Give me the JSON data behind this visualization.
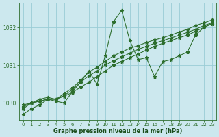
{
  "background_color": "#cce8ee",
  "grid_color": "#99ccd6",
  "line_color": "#2d6e2d",
  "marker_color": "#2d6e2d",
  "xlabel": "Graphe pression niveau de la mer (hPa)",
  "xlabel_color": "#1a4d1a",
  "tick_color": "#2d6e2d",
  "xlim": [
    -0.5,
    23.5
  ],
  "ylim": [
    1029.55,
    1032.65
  ],
  "yticks": [
    1030,
    1031,
    1032
  ],
  "xticks": [
    0,
    1,
    2,
    3,
    4,
    5,
    6,
    7,
    8,
    9,
    10,
    11,
    12,
    13,
    14,
    15,
    16,
    17,
    18,
    19,
    20,
    21,
    22,
    23
  ],
  "series": [
    [
      1029.7,
      1029.85,
      1029.95,
      1030.1,
      1030.05,
      1030.0,
      1030.3,
      1030.55,
      1030.85,
      1030.5,
      1031.25,
      1032.15,
      1032.45,
      1031.65,
      1031.15,
      1031.2,
      1030.7,
      1031.1,
      1031.15,
      1031.25,
      1031.35,
      1031.8,
      1032.0,
      1032.1
    ],
    [
      1029.85,
      1030.0,
      1030.1,
      1030.15,
      1030.1,
      1030.25,
      1030.4,
      1030.6,
      1030.82,
      1030.95,
      1031.1,
      1031.25,
      1031.35,
      1031.45,
      1031.52,
      1031.6,
      1031.67,
      1031.73,
      1031.8,
      1031.88,
      1031.95,
      1032.05,
      1032.12,
      1032.2
    ],
    [
      1029.9,
      1030.0,
      1030.05,
      1030.1,
      1030.1,
      1030.2,
      1030.35,
      1030.55,
      1030.72,
      1030.85,
      1031.0,
      1031.12,
      1031.22,
      1031.32,
      1031.42,
      1031.5,
      1031.58,
      1031.65,
      1031.72,
      1031.8,
      1031.87,
      1031.95,
      1032.05,
      1032.12
    ],
    [
      1029.95,
      1030.0,
      1030.05,
      1030.1,
      1030.1,
      1030.18,
      1030.28,
      1030.42,
      1030.55,
      1030.7,
      1030.85,
      1031.0,
      1031.1,
      1031.2,
      1031.3,
      1031.4,
      1031.5,
      1031.58,
      1031.65,
      1031.73,
      1031.8,
      1031.9,
      1032.0,
      1032.1
    ]
  ]
}
